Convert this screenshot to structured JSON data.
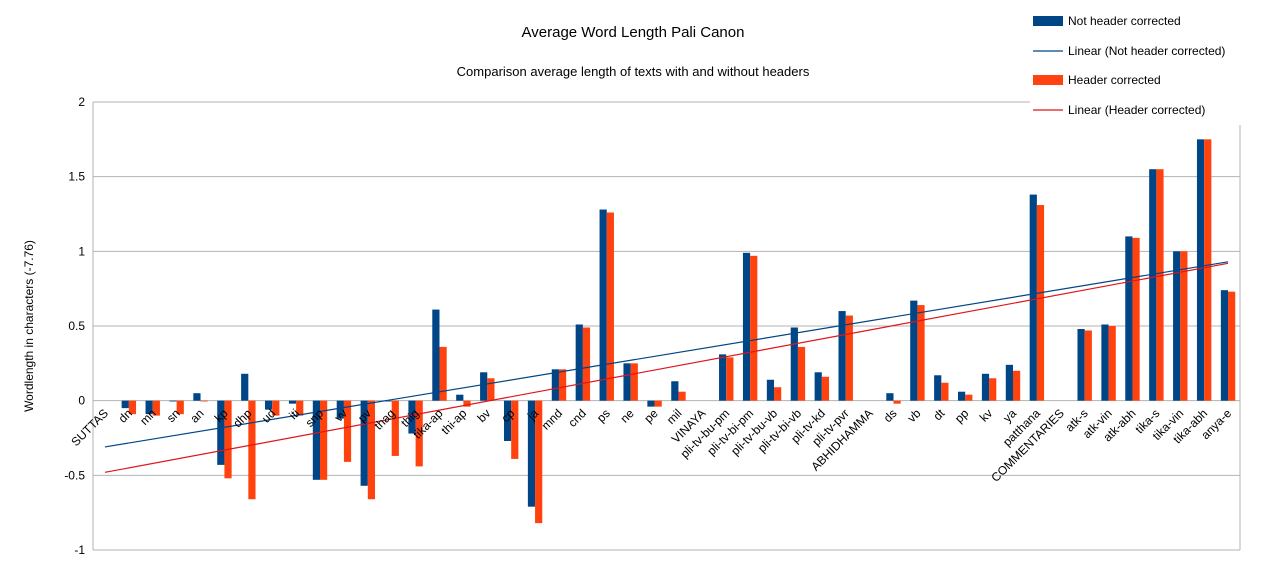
{
  "chart_data": {
    "type": "bar",
    "title": "Average Word Length Pali Canon",
    "subtitle": "Comparison average length of texts with and without headers",
    "xlabel": "",
    "ylabel": "Wordlength in characters (-7.76)",
    "ylim": [
      -1,
      2
    ],
    "yticks": [
      "-1",
      "-0.5",
      "0",
      "0.5",
      "1",
      "1.5",
      "2"
    ],
    "grid": true,
    "legend_position": "top-right",
    "colors": {
      "not_header_corrected": "#004586",
      "header_corrected": "#ff420e",
      "trend_not_header_corrected": "#004586",
      "trend_header_corrected": "#e0151a"
    },
    "categories": [
      "SUTTAS",
      "dn",
      "mn",
      "sn",
      "an",
      "kp",
      "dhp",
      "ud",
      "iti",
      "snp",
      "vv",
      "pv",
      "thag",
      "thig",
      "tika-ap",
      "thi-ap",
      "bv",
      "cp",
      "ja",
      "mnd",
      "cnd",
      "ps",
      "ne",
      "pe",
      "mil",
      "VINAYA",
      "pli-tv-bu-pm",
      "pli-tv-bi-pm",
      "pli-tv-bu-vb",
      "pli-tv-bi-vb",
      "pli-tv-kd",
      "pli-tv-pvr",
      "ABHIDHAMMA",
      "ds",
      "vb",
      "dt",
      "pp",
      "kv",
      "ya",
      "patthana",
      "COMMENTARIES",
      "atk-s",
      "atk-vin",
      "atk-abh",
      "tika-s",
      "tika-vin",
      "tika-abh",
      "anya-e"
    ],
    "series": [
      {
        "name": "Not header corrected",
        "values": [
          null,
          -0.05,
          -0.09,
          0,
          0.05,
          -0.43,
          0.18,
          -0.06,
          -0.02,
          -0.53,
          -0.12,
          -0.57,
          0,
          -0.22,
          0.61,
          0.04,
          0.19,
          -0.27,
          -0.71,
          0.21,
          0.51,
          1.28,
          0.25,
          -0.04,
          0.13,
          null,
          0.31,
          0.99,
          0.14,
          0.49,
          0.19,
          0.6,
          null,
          0.05,
          0.67,
          0.17,
          0.06,
          0.18,
          0.24,
          1.38,
          null,
          0.48,
          0.51,
          1.1,
          1.55,
          1.0,
          1.75,
          0.74
        ]
      },
      {
        "name": "Header corrected",
        "values": [
          null,
          -0.09,
          -0.1,
          -0.09,
          0,
          -0.52,
          -0.66,
          -0.1,
          -0.1,
          -0.53,
          -0.41,
          -0.66,
          -0.37,
          -0.44,
          0.36,
          -0.04,
          0.15,
          -0.39,
          -0.82,
          0.21,
          0.49,
          1.26,
          0.25,
          -0.04,
          0.06,
          null,
          0.29,
          0.97,
          0.09,
          0.36,
          0.16,
          0.57,
          null,
          -0.02,
          0.64,
          0.12,
          0.04,
          0.15,
          0.2,
          1.31,
          null,
          0.47,
          0.5,
          1.09,
          1.55,
          1.0,
          1.75,
          0.73
        ]
      }
    ],
    "trendlines": [
      {
        "name": "Linear (Not header corrected)",
        "series": "Not header corrected",
        "start": -0.31,
        "end": 0.93
      },
      {
        "name": "Linear (Header corrected)",
        "series": "Header corrected",
        "start": -0.48,
        "end": 0.92
      }
    ]
  }
}
